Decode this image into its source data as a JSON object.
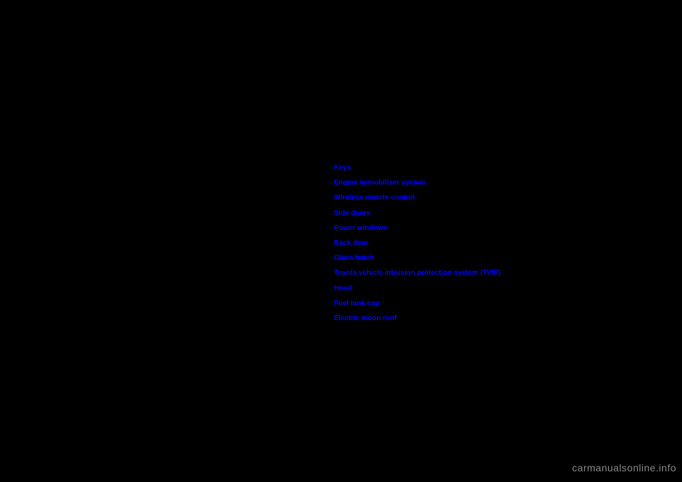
{
  "links": [
    {
      "label": "Keys"
    },
    {
      "label": "Engine immobiliser system"
    },
    {
      "label": "Wireless remote control"
    },
    {
      "label": "Side doors"
    },
    {
      "label": "Power windows"
    },
    {
      "label": "Back door"
    },
    {
      "label": "Glass hatch"
    },
    {
      "label": "Toyota vehicle intrusion protection system (TVIP)"
    },
    {
      "label": "Hood"
    },
    {
      "label": "Fuel tank cap"
    },
    {
      "label": "Electric moon roof"
    }
  ],
  "watermark": "carmanualsonline.info",
  "colors": {
    "background": "#000000",
    "link": "#0000ff",
    "watermark": "#888888"
  }
}
